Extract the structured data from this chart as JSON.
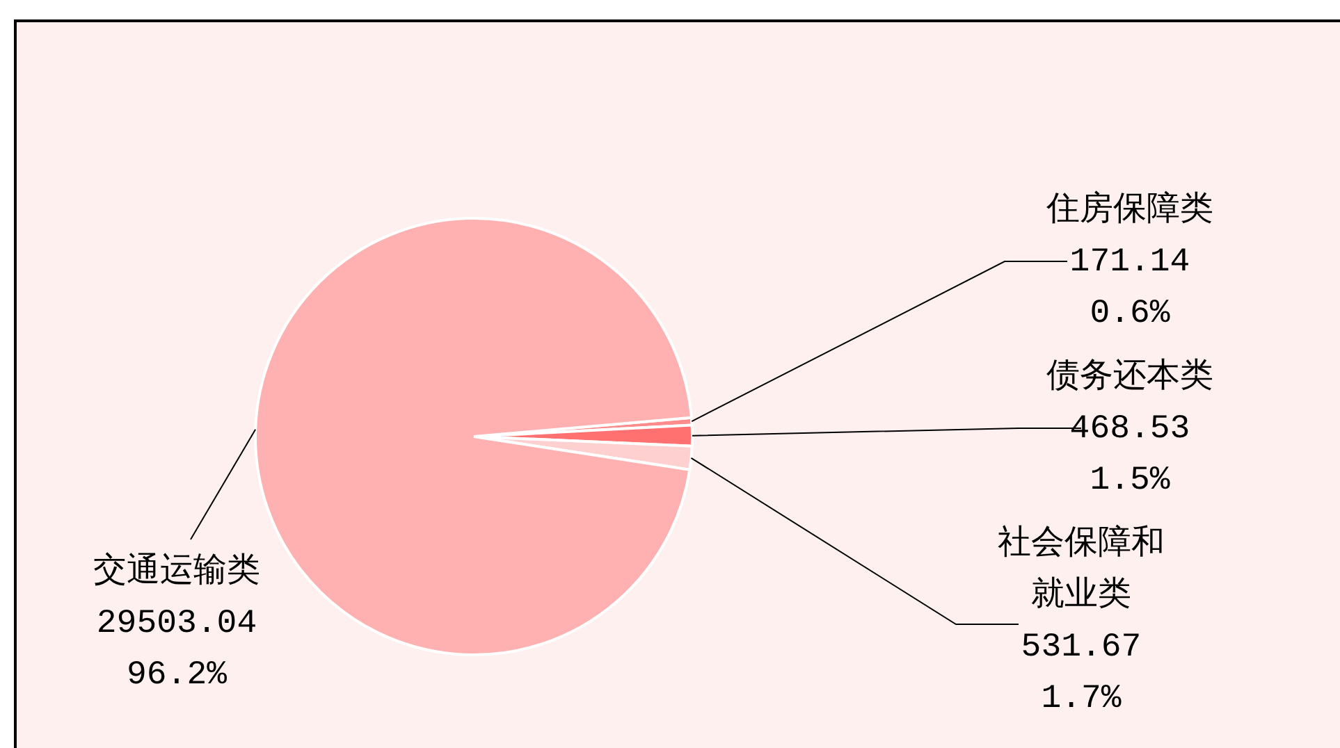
{
  "chart_data": {
    "type": "pie",
    "categories": [
      "住房保障类",
      "债务还本类",
      "社会保障和就业类",
      "交通运输类"
    ],
    "values": [
      171.14,
      468.53,
      531.67,
      29503.04
    ],
    "colors": [
      "#ff8c8c",
      "#ff7070",
      "#ffd0d0",
      "#ffb0b0"
    ],
    "value_labels": [
      "171.14\n0.6%",
      "468.53\n1.5%",
      "531.67\n1.7%",
      "29503.04\n96.2%"
    ],
    "legend": false
  }
}
